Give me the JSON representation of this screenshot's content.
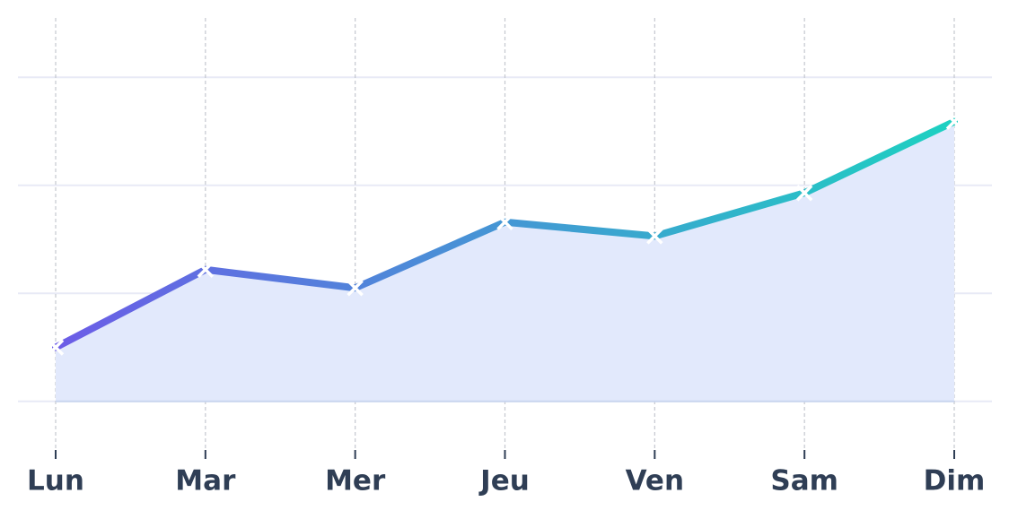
{
  "chart_data": {
    "type": "line",
    "categories": [
      "Lun",
      "Mar",
      "Mer",
      "Jeu",
      "Ven",
      "Sam",
      "Dim"
    ],
    "series": [
      {
        "values": [
          0.5,
          1.22,
          1.05,
          1.66,
          1.53,
          1.93,
          2.59
        ],
        "color": [
          "#6c5ce7",
          "#1dd1c1"
        ],
        "fill": "#e2e9fc"
      }
    ],
    "ylim": [
      -0.45,
      3.55
    ],
    "yticks": [
      0,
      1,
      2,
      3
    ],
    "grid": true
  }
}
